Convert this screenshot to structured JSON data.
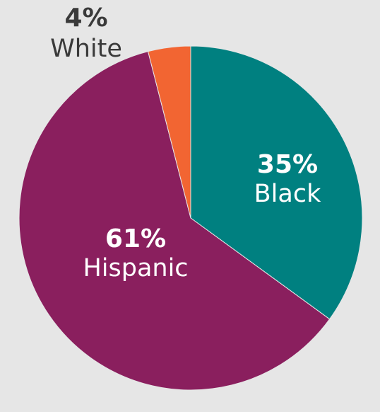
{
  "chart_data": {
    "type": "pie",
    "title": "",
    "start_angle_deg": 0,
    "direction": "clockwise",
    "slices": [
      {
        "label": "Black",
        "percent_label": "35%",
        "value": 35,
        "color": "#008080",
        "label_color": "#ffffff",
        "label_placement": "inside"
      },
      {
        "label": "Hispanic",
        "percent_label": "61%",
        "value": 61,
        "color": "#8a1f5e",
        "label_color": "#ffffff",
        "label_placement": "inside"
      },
      {
        "label": "White",
        "percent_label": "4%",
        "value": 4,
        "color": "#f26532",
        "label_color": "#3a3a3a",
        "label_placement": "outside"
      }
    ]
  },
  "colors": {
    "background": "#e6e6e6",
    "slice_border": "#e6e6e6"
  }
}
